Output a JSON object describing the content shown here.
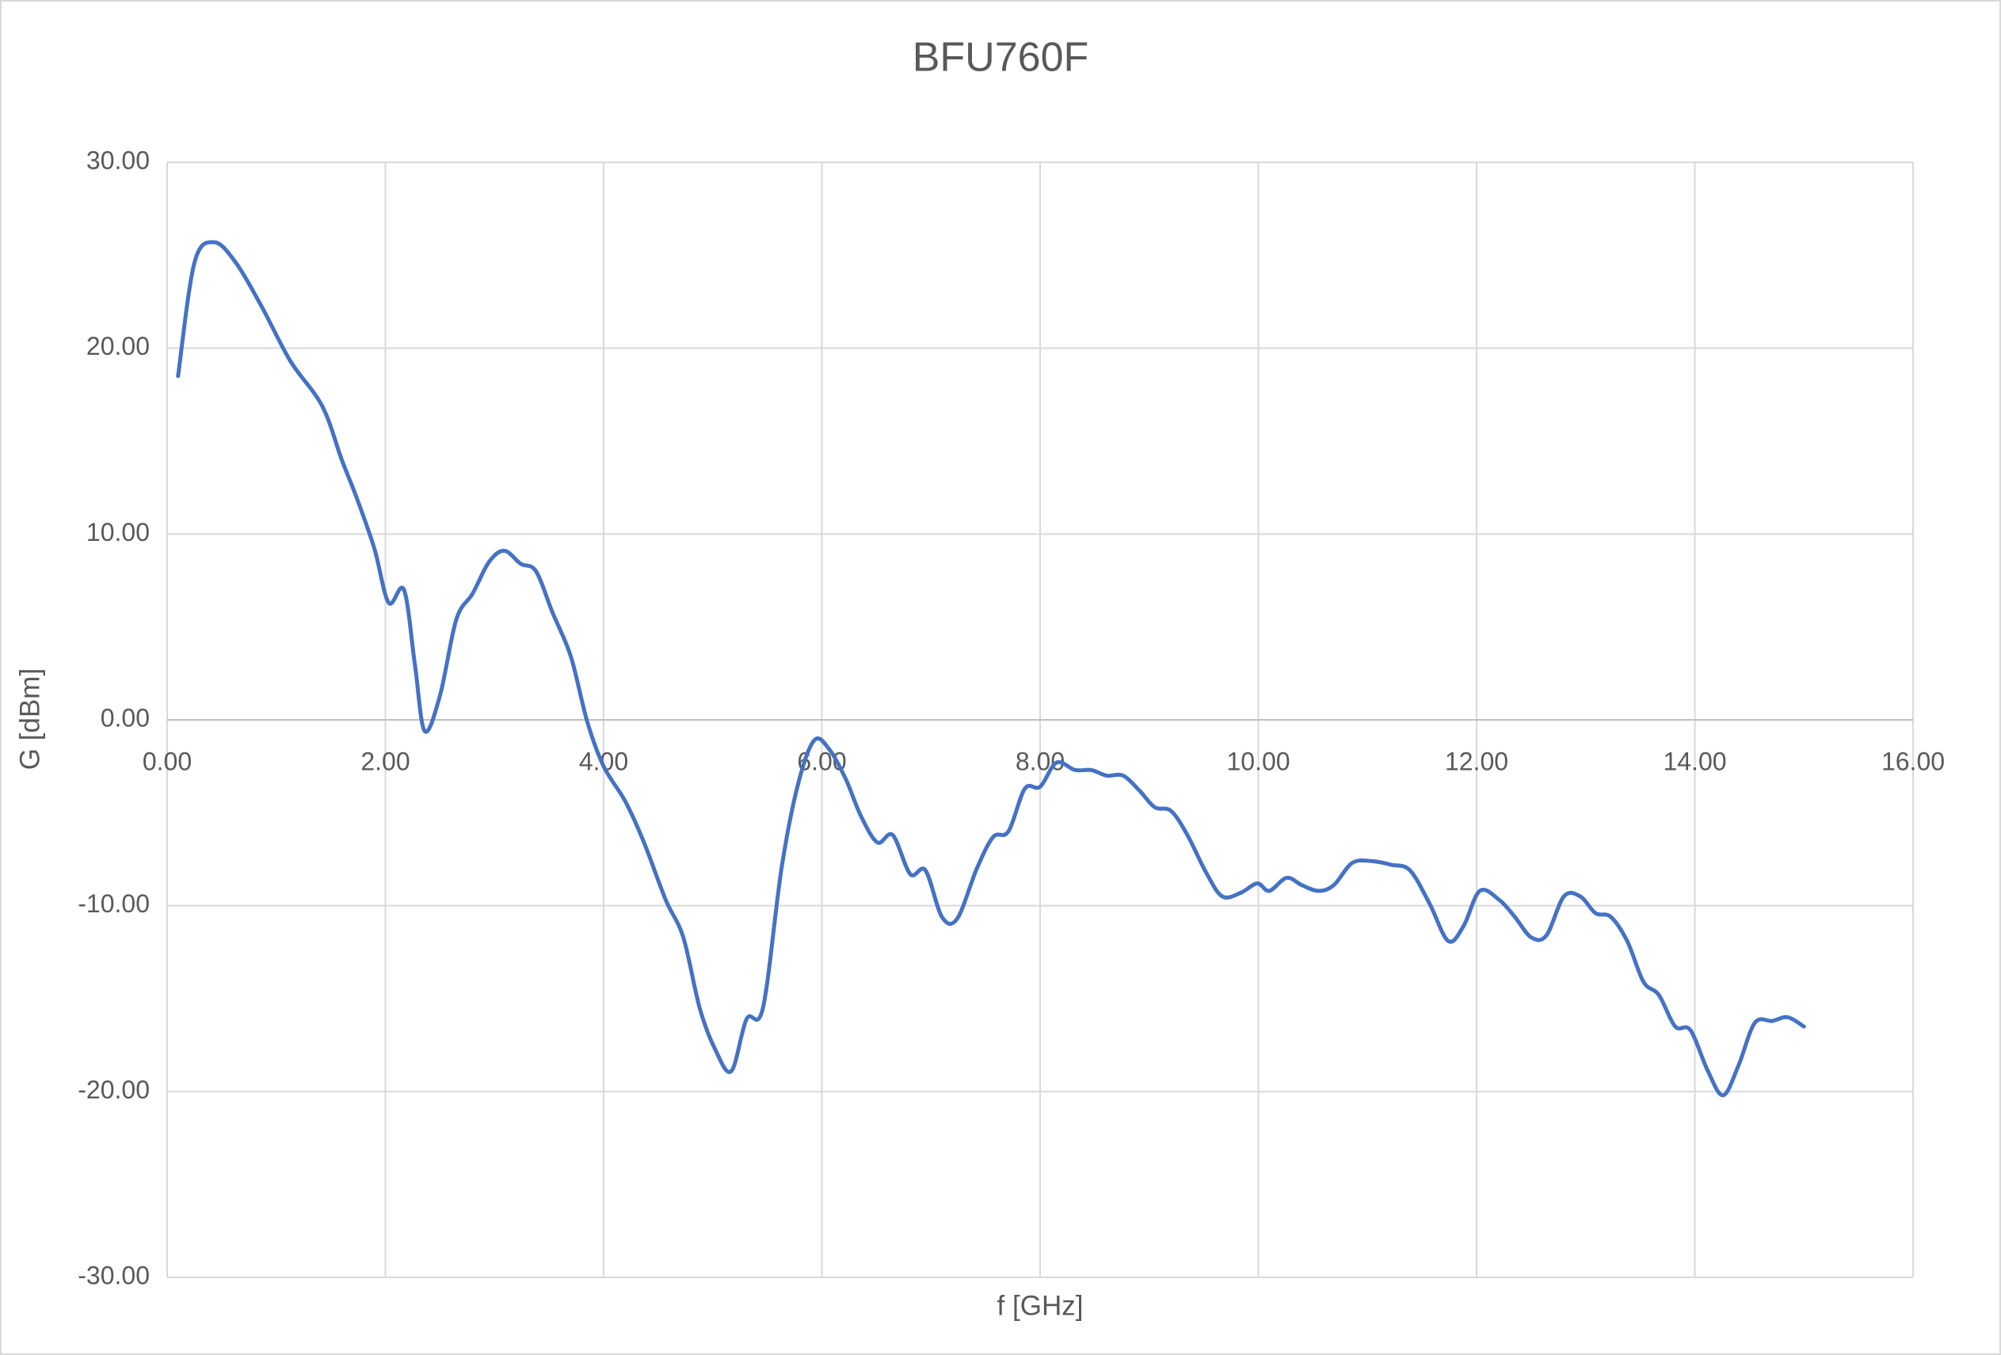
{
  "chart_data": {
    "type": "line",
    "title": "BFU760F",
    "x_label": "f [GHz]",
    "y_label": "G [dBm]",
    "color": "#4472c4",
    "grid": true,
    "xlim": [
      0,
      16
    ],
    "ylim": [
      -30,
      30
    ],
    "xticks": [
      {
        "value": 0,
        "label": "0.00"
      },
      {
        "value": 2,
        "label": "2.00"
      },
      {
        "value": 4,
        "label": "4.00"
      },
      {
        "value": 6,
        "label": "6.00"
      },
      {
        "value": 8,
        "label": "8.00"
      },
      {
        "value": 10,
        "label": "10.00"
      },
      {
        "value": 12,
        "label": "12.00"
      },
      {
        "value": 14,
        "label": "14.00"
      },
      {
        "value": 16,
        "label": "16.00"
      }
    ],
    "yticks": [
      {
        "value": -30,
        "label": "-30.00"
      },
      {
        "value": -20,
        "label": "-20.00"
      },
      {
        "value": -10,
        "label": "-10.00"
      },
      {
        "value": 0,
        "label": "0.00"
      },
      {
        "value": 10,
        "label": "10.00"
      },
      {
        "value": 20,
        "label": "20.00"
      },
      {
        "value": 30,
        "label": "30.00"
      }
    ],
    "x": [
      0.1,
      0.25,
      0.43,
      0.63,
      0.87,
      1.13,
      1.42,
      1.6,
      1.74,
      1.9,
      2.03,
      2.17,
      2.27,
      2.36,
      2.5,
      2.65,
      2.8,
      2.95,
      3.09,
      3.24,
      3.38,
      3.53,
      3.7,
      3.85,
      4.0,
      4.2,
      4.37,
      4.57,
      4.73,
      4.88,
      5.02,
      5.17,
      5.31,
      5.46,
      5.63,
      5.78,
      5.93,
      6.07,
      6.22,
      6.36,
      6.51,
      6.65,
      6.81,
      6.95,
      7.1,
      7.24,
      7.42,
      7.57,
      7.71,
      7.86,
      8.0,
      8.15,
      8.32,
      8.47,
      8.61,
      8.76,
      8.91,
      9.05,
      9.2,
      9.35,
      9.52,
      9.67,
      9.84,
      9.99,
      10.1,
      10.26,
      10.4,
      10.55,
      10.69,
      10.86,
      11.04,
      11.22,
      11.39,
      11.57,
      11.74,
      11.88,
      12.03,
      12.21,
      12.35,
      12.5,
      12.64,
      12.8,
      12.95,
      13.09,
      13.23,
      13.38,
      13.53,
      13.67,
      13.82,
      13.96,
      14.12,
      14.26,
      14.4,
      14.55,
      14.71,
      14.85,
      15.0
    ],
    "values": [
      18.5,
      24.6,
      25.7,
      24.6,
      22.2,
      19.3,
      16.9,
      14,
      11.9,
      9.2,
      6.3,
      7.0,
      3.0,
      -0.6,
      1.3,
      5.4,
      6.8,
      8.5,
      9.1,
      8.4,
      8.0,
      5.8,
      3.4,
      -0.1,
      -2.5,
      -4.4,
      -6.6,
      -9.7,
      -11.7,
      -15.5,
      -17.7,
      -18.9,
      -16.1,
      -15.5,
      -8.0,
      -3.5,
      -1.1,
      -1.6,
      -3.2,
      -5.2,
      -6.6,
      -6.2,
      -8.3,
      -8.1,
      -10.6,
      -10.7,
      -8.0,
      -6.3,
      -6.0,
      -3.7,
      -3.6,
      -2.3,
      -2.7,
      -2.7,
      -3.0,
      -3.0,
      -3.8,
      -4.7,
      -4.9,
      -6.2,
      -8.2,
      -9.5,
      -9.3,
      -8.8,
      -9.2,
      -8.5,
      -8.9,
      -9.2,
      -8.9,
      -7.7,
      -7.6,
      -7.8,
      -8.1,
      -9.9,
      -11.9,
      -11.1,
      -9.2,
      -9.7,
      -10.6,
      -11.7,
      -11.6,
      -9.5,
      -9.5,
      -10.4,
      -10.6,
      -11.9,
      -14.1,
      -14.8,
      -16.5,
      -16.7,
      -18.9,
      -20.2,
      -18.6,
      -16.3,
      -16.2,
      -16.0,
      -16.5
    ]
  }
}
